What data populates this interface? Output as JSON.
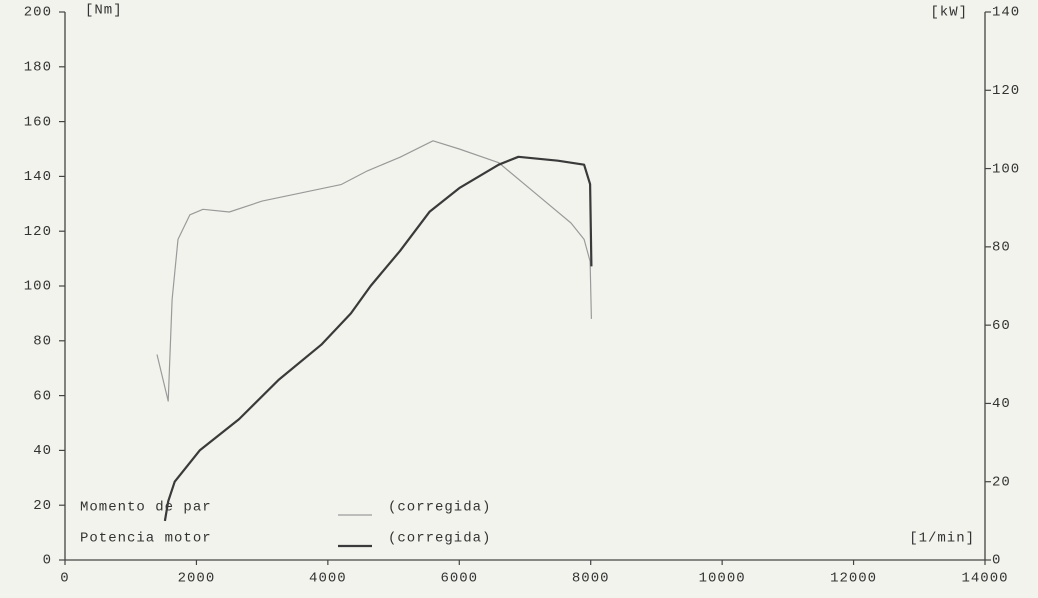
{
  "chart_data": {
    "type": "line",
    "y_label": "[Nm]",
    "y2_label": "[kW]",
    "x_label": "[1/min]",
    "xlim": [
      0,
      14000
    ],
    "xticks": [
      0,
      2000,
      4000,
      6000,
      8000,
      10000,
      12000,
      14000
    ],
    "ylim": [
      0,
      200
    ],
    "yticks": [
      0,
      20,
      40,
      60,
      80,
      100,
      120,
      140,
      160,
      180,
      200
    ],
    "y2lim": [
      0,
      140
    ],
    "y2ticks": [
      0,
      20,
      40,
      60,
      80,
      100,
      120,
      140
    ],
    "series": [
      {
        "name": "Momento de par",
        "note": "(corregida)",
        "color": "#9a9a9a",
        "axis": "y",
        "x": [
          1400,
          1570,
          1630,
          1720,
          1900,
          2100,
          2500,
          3000,
          3600,
          4200,
          4600,
          5100,
          5600,
          6000,
          6600,
          7200,
          7700,
          7900,
          7990,
          8010
        ],
        "values": [
          75,
          58,
          95,
          117,
          126,
          128,
          127,
          131,
          134,
          137,
          142,
          147,
          153,
          150,
          145,
          133,
          123,
          117,
          109,
          88
        ]
      },
      {
        "name": "Potencia motor",
        "note": "(corregida)",
        "color": "#3a3a3a",
        "axis": "y2",
        "x": [
          1520,
          1570,
          1670,
          2050,
          2650,
          3250,
          3900,
          4350,
          4650,
          5100,
          5550,
          6000,
          6600,
          6900,
          7500,
          7900,
          7990,
          8010
        ],
        "values": [
          10,
          15,
          20,
          28,
          36,
          46,
          55,
          63,
          70,
          79,
          89,
          95,
          101,
          103,
          102,
          101,
          96,
          75
        ]
      }
    ]
  }
}
